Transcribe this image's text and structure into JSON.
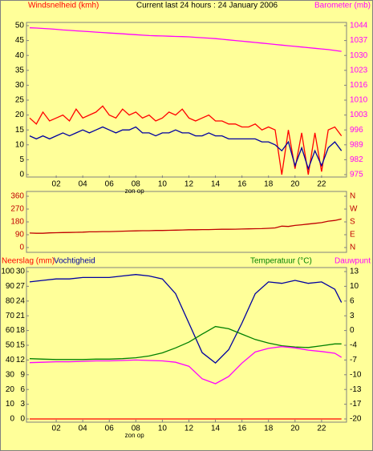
{
  "chart_data": [
    {
      "type": "line",
      "title": "Current last 24 hours : 24 January 2006",
      "ylabel": "Windsnelheid (kmh)",
      "y2label": "Barometer (mb)",
      "annotations": [
        {
          "text": "zon op",
          "x": 7.9
        }
      ],
      "xlim": [
        0,
        23.7
      ],
      "xticks": [
        {
          "value": 2,
          "label": "02"
        },
        {
          "value": 4,
          "label": "04"
        },
        {
          "value": 6,
          "label": "06"
        },
        {
          "value": 8,
          "label": "08"
        },
        {
          "value": 10,
          "label": "10"
        },
        {
          "value": 12,
          "label": "12"
        },
        {
          "value": 14,
          "label": "14"
        },
        {
          "value": 16,
          "label": "16"
        },
        {
          "value": 18,
          "label": "18"
        },
        {
          "value": 20,
          "label": "20"
        },
        {
          "value": 22,
          "label": "22"
        }
      ],
      "ylim": [
        0,
        50
      ],
      "yticks": [
        0,
        5,
        10,
        15,
        20,
        25,
        30,
        35,
        40,
        45,
        50
      ],
      "y2lim": [
        975,
        1044
      ],
      "y2ticks": [
        {
          "value": 975,
          "label": "975"
        },
        {
          "value": 981.9,
          "label": "982"
        },
        {
          "value": 988.8,
          "label": "989"
        },
        {
          "value": 995.7,
          "label": "996"
        },
        {
          "value": 1002.6,
          "label": "1003"
        },
        {
          "value": 1009.5,
          "label": "1010"
        },
        {
          "value": 1016.4,
          "label": "1016"
        },
        {
          "value": 1023.3,
          "label": "1023"
        },
        {
          "value": 1030.2,
          "label": "1030"
        },
        {
          "value": 1037.1,
          "label": "1037"
        },
        {
          "value": 1044,
          "label": "1044"
        }
      ],
      "x": [
        0,
        0.5,
        1,
        1.5,
        2,
        2.5,
        3,
        3.5,
        4,
        4.5,
        5,
        5.5,
        6,
        6.5,
        7,
        7.5,
        8,
        8.5,
        9,
        9.5,
        10,
        10.5,
        11,
        11.5,
        12,
        12.5,
        13,
        13.5,
        14,
        14.5,
        15,
        15.5,
        16,
        16.5,
        17,
        17.5,
        18,
        18.5,
        19,
        19.5,
        20,
        20.5,
        21,
        21.5,
        22,
        22.5,
        23,
        23.5
      ],
      "series": [
        {
          "color": "#ff00ff",
          "axis": "y2",
          "values": [
            1043,
            1042.9,
            1042.7,
            1042.5,
            1042.3,
            1042,
            1041.8,
            1041.6,
            1041.4,
            1041.2,
            1041,
            1040.8,
            1040.6,
            1040.4,
            1040.2,
            1040,
            1039.8,
            1039.6,
            1039.4,
            1039.3,
            1039.2,
            1039.1,
            1039,
            1038.9,
            1038.8,
            1038.6,
            1038.4,
            1038.2,
            1038,
            1037.7,
            1037.4,
            1037.1,
            1036.8,
            1036.5,
            1036.2,
            1035.9,
            1035.6,
            1035.3,
            1035,
            1034.7,
            1034.4,
            1034.1,
            1033.8,
            1033.5,
            1033.2,
            1032.9,
            1032.5,
            1032.1
          ]
        },
        {
          "color": "#ff0000",
          "values": [
            19,
            17,
            21,
            18,
            19,
            20,
            18,
            22,
            19,
            20,
            21,
            23,
            20,
            19,
            22,
            20,
            21,
            19,
            20,
            18,
            19,
            21,
            20,
            22,
            19,
            18,
            19,
            20,
            18,
            18,
            17,
            17,
            16,
            16,
            17,
            15,
            16,
            15,
            0,
            15,
            2,
            14,
            0,
            14,
            1,
            15,
            16,
            13
          ]
        },
        {
          "color": "#0000a0",
          "values": [
            13,
            12,
            13,
            12,
            13,
            14,
            13,
            14,
            15,
            14,
            15,
            16,
            15,
            14,
            15,
            15,
            16,
            14,
            14,
            13,
            14,
            14,
            15,
            14,
            14,
            13,
            13,
            14,
            13,
            13,
            12,
            12,
            12,
            12,
            12,
            11,
            11,
            10,
            8,
            11,
            3,
            9,
            2,
            8,
            3,
            9,
            11,
            8
          ]
        }
      ]
    },
    {
      "type": "line",
      "xlim": [
        0,
        23.7
      ],
      "ylim": [
        0,
        360
      ],
      "yticks": [
        0,
        90,
        180,
        270,
        360
      ],
      "y2lim": [
        0,
        360
      ],
      "y2ticks": [
        {
          "value": 0,
          "label": "N"
        },
        {
          "value": 90,
          "label": "E"
        },
        {
          "value": 180,
          "label": "S"
        },
        {
          "value": 270,
          "label": "W"
        },
        {
          "value": 360,
          "label": "N"
        }
      ],
      "x": [
        0,
        0.5,
        1,
        1.5,
        2,
        2.5,
        3,
        3.5,
        4,
        4.5,
        5,
        5.5,
        6,
        6.5,
        7,
        7.5,
        8,
        8.5,
        9,
        9.5,
        10,
        10.5,
        11,
        11.5,
        12,
        12.5,
        13,
        13.5,
        14,
        14.5,
        15,
        15.5,
        16,
        16.5,
        17,
        17.5,
        18,
        18.5,
        19,
        19.5,
        20,
        20.5,
        21,
        21.5,
        22,
        22.5,
        23,
        23.5
      ],
      "series": [
        {
          "color": "#c00000",
          "values": [
            102,
            100,
            100,
            103,
            104,
            105,
            106,
            107,
            108,
            110,
            110,
            112,
            112,
            113,
            115,
            116,
            117,
            118,
            118,
            120,
            120,
            121,
            122,
            123,
            125,
            125,
            126,
            126,
            127,
            128,
            128,
            129,
            130,
            131,
            132,
            133,
            135,
            138,
            150,
            148,
            155,
            160,
            165,
            170,
            175,
            185,
            190,
            200
          ]
        }
      ]
    },
    {
      "type": "line",
      "annotations": [
        {
          "text": "zon op",
          "x": 7.9
        }
      ],
      "xlim": [
        0,
        23.7
      ],
      "xticks": [
        {
          "value": 2,
          "label": "02"
        },
        {
          "value": 4,
          "label": "04"
        },
        {
          "value": 6,
          "label": "06"
        },
        {
          "value": 8,
          "label": "08"
        },
        {
          "value": 10,
          "label": "10"
        },
        {
          "value": 12,
          "label": "12"
        },
        {
          "value": 14,
          "label": "14"
        },
        {
          "value": 16,
          "label": "16"
        },
        {
          "value": 18,
          "label": "18"
        },
        {
          "value": 20,
          "label": "20"
        },
        {
          "value": 22,
          "label": "22"
        }
      ],
      "ylim": [
        0,
        100
      ],
      "yticks": [
        0,
        10,
        20,
        30,
        40,
        50,
        60,
        70,
        80,
        90,
        100
      ],
      "y3lim": [
        0,
        30
      ],
      "y3ticks": [
        0,
        3,
        6,
        9,
        12,
        15,
        18,
        21,
        24,
        27,
        30
      ],
      "y2lim": [
        -20,
        13
      ],
      "y2ticks": [
        {
          "value": -20,
          "label": "-20"
        },
        {
          "value": -16.7,
          "label": "-17"
        },
        {
          "value": -13.4,
          "label": "-13"
        },
        {
          "value": -10.1,
          "label": "-10"
        },
        {
          "value": -6.8,
          "label": "-7"
        },
        {
          "value": -3.5,
          "label": "-4"
        },
        {
          "value": -0.2,
          "label": "0"
        },
        {
          "value": 3.1,
          "label": "3"
        },
        {
          "value": 6.4,
          "label": "6"
        },
        {
          "value": 9.7,
          "label": "10"
        },
        {
          "value": 13,
          "label": "13"
        }
      ],
      "x": [
        0,
        1,
        2,
        3,
        4,
        5,
        6,
        7,
        8,
        9,
        10,
        11,
        12,
        13,
        14,
        15,
        16,
        17,
        18,
        19,
        20,
        21,
        22,
        23,
        23.5
      ],
      "series": [
        {
          "name": "Neerslag (mm)",
          "color": "#ff0000",
          "axis": "y3",
          "values": [
            0,
            0,
            0,
            0,
            0,
            0,
            0,
            0,
            0,
            0,
            0,
            0,
            0,
            0,
            0,
            0,
            0,
            0,
            0,
            0,
            0,
            0,
            0,
            0,
            0
          ]
        },
        {
          "name": "Vochtigheid",
          "color": "#0000a0",
          "values": [
            93,
            94,
            95,
            95,
            96,
            96,
            96,
            97,
            98,
            97,
            95,
            85,
            65,
            45,
            38,
            47,
            65,
            85,
            93,
            92,
            94,
            92,
            93,
            88,
            79
          ]
        },
        {
          "name": "Temperatuur (°C)",
          "color": "#008000",
          "axis": "y2",
          "values": [
            -6.5,
            -6.6,
            -6.7,
            -6.7,
            -6.7,
            -6.6,
            -6.6,
            -6.5,
            -6.3,
            -5.9,
            -5.2,
            -4.1,
            -2.8,
            -1,
            0.7,
            0.2,
            -1,
            -2.2,
            -3,
            -3.6,
            -3.9,
            -4,
            -3.6,
            -3.2,
            -3.2
          ]
        },
        {
          "name": "Dauwpunt",
          "color": "#ff00ff",
          "axis": "y2",
          "values": [
            -7.4,
            -7.3,
            -7.2,
            -7.2,
            -7.1,
            -7,
            -7,
            -6.9,
            -6.8,
            -6.9,
            -7,
            -7.3,
            -8.2,
            -11,
            -12.1,
            -10.5,
            -7.5,
            -5,
            -4.2,
            -3.8,
            -4.1,
            -4.6,
            -4.9,
            -5.3,
            -6.2
          ]
        }
      ]
    }
  ]
}
